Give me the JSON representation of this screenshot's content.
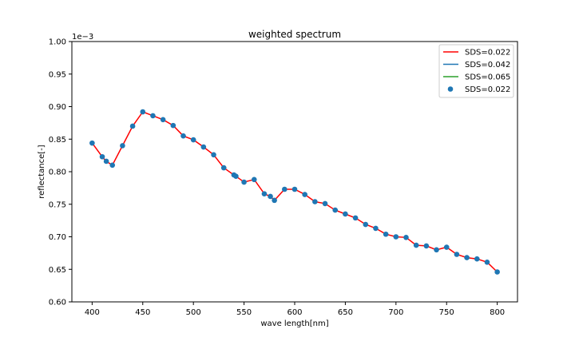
{
  "chart_data": {
    "type": "line",
    "title": "weighted spectrum",
    "xlabel": "wave length[nm]",
    "ylabel": "reflectance[-]",
    "y_offset_text": "1e−3",
    "xlim": [
      380,
      820
    ],
    "ylim": [
      0.6,
      1.0
    ],
    "x_ticks": [
      400,
      450,
      500,
      550,
      600,
      650,
      700,
      750,
      800
    ],
    "y_ticks": [
      0.6,
      0.65,
      0.7,
      0.75,
      0.8,
      0.85,
      0.9,
      0.95,
      1.0
    ],
    "y_tick_decimals": 2,
    "grid": false,
    "legend_position": "top-right",
    "legend": [
      {
        "label": "SDS=0.022",
        "kind": "line",
        "color": "#ff0000"
      },
      {
        "label": "SDS=0.042",
        "kind": "line",
        "color": "#1f77b4"
      },
      {
        "label": "SDS=0.065",
        "kind": "line",
        "color": "#2ca02c"
      },
      {
        "label": "SDS=0.022",
        "kind": "marker",
        "color": "#1f77b4"
      }
    ],
    "x": [
      400,
      410,
      414,
      420,
      430,
      440,
      450,
      460,
      470,
      480,
      490,
      500,
      510,
      520,
      530,
      540,
      542,
      550,
      560,
      570,
      576,
      580,
      590,
      600,
      610,
      620,
      630,
      640,
      650,
      660,
      670,
      680,
      690,
      700,
      710,
      720,
      730,
      740,
      750,
      760,
      770,
      780,
      790,
      800
    ],
    "series": [
      {
        "label": "SDS=0.022",
        "kind": "line",
        "color": "#ff0000",
        "values": [
          0.844,
          0.823,
          0.816,
          0.81,
          0.84,
          0.87,
          0.892,
          0.886,
          0.88,
          0.871,
          0.855,
          0.849,
          0.838,
          0.826,
          0.806,
          0.795,
          0.793,
          0.784,
          0.788,
          0.766,
          0.762,
          0.756,
          0.773,
          0.773,
          0.765,
          0.754,
          0.751,
          0.741,
          0.735,
          0.729,
          0.719,
          0.713,
          0.704,
          0.7,
          0.699,
          0.687,
          0.686,
          0.68,
          0.684,
          0.673,
          0.668,
          0.666,
          0.661,
          0.646
        ]
      },
      {
        "label": "SDS=0.022",
        "kind": "scatter",
        "color": "#1f77b4",
        "values": [
          0.844,
          0.823,
          0.816,
          0.81,
          0.84,
          0.87,
          0.892,
          0.886,
          0.88,
          0.871,
          0.855,
          0.849,
          0.838,
          0.826,
          0.806,
          0.795,
          0.793,
          0.784,
          0.788,
          0.766,
          0.762,
          0.756,
          0.773,
          0.773,
          0.765,
          0.754,
          0.751,
          0.741,
          0.735,
          0.729,
          0.719,
          0.713,
          0.704,
          0.7,
          0.699,
          0.687,
          0.686,
          0.68,
          0.684,
          0.673,
          0.668,
          0.666,
          0.661,
          0.646
        ]
      }
    ]
  }
}
